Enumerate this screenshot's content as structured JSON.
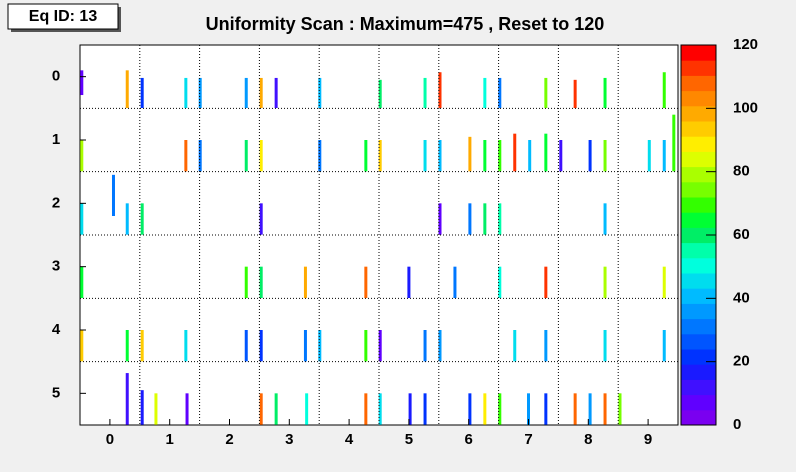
{
  "chart_data": {
    "type": "heatmap",
    "label": "Eq ID: 13",
    "title": "Uniformity Scan : Maximum=475 , Reset to 120",
    "xlim": [
      -0.5,
      9.5
    ],
    "xticks": [
      0,
      1,
      2,
      3,
      4,
      5,
      6,
      7,
      8,
      9
    ],
    "ylim": [
      5.5,
      -0.5
    ],
    "yticks": [
      0,
      1,
      2,
      3,
      4,
      5
    ],
    "xgrid": [
      0.5,
      1.5,
      2.5,
      3.5,
      4.5,
      5.5,
      6.5,
      7.5,
      8.5
    ],
    "ygrid": [
      0.5,
      1.5,
      2.5,
      3.5,
      4.5
    ],
    "zlim": [
      0,
      120
    ],
    "zticks": [
      0,
      20,
      40,
      60,
      80,
      100,
      120
    ],
    "palette": [
      "#7a00f0",
      "#6000ff",
      "#4010ff",
      "#1a1aff",
      "#0033ff",
      "#0055ff",
      "#0077ff",
      "#0099ff",
      "#00bbff",
      "#00ddee",
      "#00ffdd",
      "#00ffaa",
      "#00ee66",
      "#00ff33",
      "#33ff00",
      "#77ff00",
      "#aaff00",
      "#ddff00",
      "#ffee00",
      "#ffcc00",
      "#ffaa00",
      "#ff8800",
      "#ff6600",
      "#ff3300",
      "#ff0000"
    ],
    "cells": [
      [
        -0.47,
        -0.1,
        0.29,
        5
      ],
      [
        0.29,
        -0.1,
        0.495,
        100
      ],
      [
        0.54,
        0.02,
        0.495,
        20
      ],
      [
        1.27,
        0.02,
        0.495,
        45
      ],
      [
        1.51,
        0.02,
        0.495,
        35
      ],
      [
        2.28,
        0.02,
        0.495,
        35
      ],
      [
        2.53,
        0.02,
        0.495,
        100
      ],
      [
        2.78,
        0.02,
        0.495,
        10
      ],
      [
        3.51,
        0.02,
        0.495,
        40
      ],
      [
        4.52,
        0.05,
        0.495,
        60
      ],
      [
        5.27,
        0.02,
        0.495,
        55
      ],
      [
        5.52,
        -0.07,
        0.495,
        115
      ],
      [
        6.27,
        0.02,
        0.495,
        50
      ],
      [
        6.52,
        0.02,
        0.495,
        30
      ],
      [
        7.29,
        0.02,
        0.495,
        75
      ],
      [
        7.78,
        0.05,
        0.495,
        115
      ],
      [
        8.28,
        0.02,
        0.495,
        65
      ],
      [
        9.27,
        -0.07,
        0.495,
        70
      ],
      [
        -0.47,
        1.0,
        1.495,
        80
      ],
      [
        1.27,
        1.0,
        1.495,
        110
      ],
      [
        1.51,
        1.0,
        1.495,
        30
      ],
      [
        2.28,
        1.0,
        1.495,
        60
      ],
      [
        2.53,
        1.0,
        1.495,
        90
      ],
      [
        3.51,
        1.0,
        1.495,
        30
      ],
      [
        4.28,
        1.0,
        1.495,
        65
      ],
      [
        4.52,
        1.0,
        1.495,
        95
      ],
      [
        5.27,
        1.0,
        1.495,
        45
      ],
      [
        5.52,
        1.0,
        1.495,
        40
      ],
      [
        6.02,
        0.95,
        1.495,
        100
      ],
      [
        6.27,
        1.0,
        1.495,
        65
      ],
      [
        6.52,
        1.0,
        1.495,
        70
      ],
      [
        6.77,
        0.9,
        1.495,
        115
      ],
      [
        7.02,
        1.0,
        1.495,
        40
      ],
      [
        7.29,
        0.9,
        1.495,
        65
      ],
      [
        7.54,
        1.0,
        1.495,
        10
      ],
      [
        8.03,
        1.0,
        1.495,
        20
      ],
      [
        8.28,
        1.0,
        1.495,
        75
      ],
      [
        9.02,
        1.0,
        1.495,
        45
      ],
      [
        9.27,
        1.0,
        1.495,
        40
      ],
      [
        9.43,
        0.6,
        1.495,
        70
      ],
      [
        -0.47,
        2.0,
        2.495,
        45
      ],
      [
        0.06,
        1.55,
        2.2,
        30
      ],
      [
        0.29,
        2.0,
        2.495,
        40
      ],
      [
        0.54,
        2.0,
        2.495,
        60
      ],
      [
        2.53,
        2.0,
        2.495,
        10
      ],
      [
        5.52,
        2.0,
        2.495,
        8
      ],
      [
        6.02,
        2.0,
        2.495,
        30
      ],
      [
        6.27,
        2.0,
        2.495,
        60
      ],
      [
        6.52,
        2.0,
        2.495,
        55
      ],
      [
        8.28,
        2.0,
        2.495,
        40
      ],
      [
        -0.47,
        3.0,
        3.495,
        65
      ],
      [
        2.28,
        3.0,
        3.495,
        70
      ],
      [
        2.53,
        3.0,
        3.495,
        60
      ],
      [
        3.27,
        3.0,
        3.495,
        100
      ],
      [
        4.28,
        3.0,
        3.495,
        110
      ],
      [
        5.0,
        3.0,
        3.495,
        15
      ],
      [
        5.77,
        3.0,
        3.495,
        30
      ],
      [
        6.52,
        3.0,
        3.495,
        50
      ],
      [
        7.29,
        3.0,
        3.495,
        115
      ],
      [
        8.28,
        3.0,
        3.495,
        80
      ],
      [
        9.27,
        3.0,
        3.495,
        85
      ],
      [
        -0.47,
        4.0,
        4.495,
        95
      ],
      [
        0.29,
        4.0,
        4.495,
        65
      ],
      [
        0.54,
        4.0,
        4.495,
        95
      ],
      [
        1.27,
        4.0,
        4.495,
        45
      ],
      [
        2.28,
        4.0,
        4.495,
        25
      ],
      [
        2.53,
        4.0,
        4.495,
        20
      ],
      [
        3.27,
        4.0,
        4.495,
        30
      ],
      [
        3.51,
        4.0,
        4.495,
        40
      ],
      [
        4.28,
        4.0,
        4.495,
        70
      ],
      [
        4.52,
        4.0,
        4.495,
        8
      ],
      [
        5.27,
        4.0,
        4.495,
        30
      ],
      [
        5.52,
        4.0,
        4.495,
        35
      ],
      [
        6.77,
        4.0,
        4.495,
        45
      ],
      [
        7.29,
        4.0,
        4.495,
        35
      ],
      [
        8.28,
        4.0,
        4.495,
        45
      ],
      [
        9.27,
        4.0,
        4.495,
        40
      ],
      [
        0.29,
        4.68,
        5.495,
        10
      ],
      [
        0.54,
        4.95,
        5.495,
        15
      ],
      [
        0.77,
        5.0,
        5.495,
        85
      ],
      [
        1.29,
        5.0,
        5.495,
        8
      ],
      [
        2.53,
        5.0,
        5.495,
        110
      ],
      [
        2.78,
        5.0,
        5.495,
        60
      ],
      [
        3.29,
        5.0,
        5.495,
        50
      ],
      [
        4.28,
        5.0,
        5.495,
        110
      ],
      [
        4.52,
        5.0,
        5.495,
        45
      ],
      [
        5.02,
        5.0,
        5.495,
        15
      ],
      [
        5.27,
        5.0,
        5.495,
        20
      ],
      [
        6.02,
        5.0,
        5.495,
        20
      ],
      [
        6.27,
        5.0,
        5.495,
        90
      ],
      [
        6.52,
        5.0,
        5.495,
        70
      ],
      [
        7.0,
        5.0,
        5.495,
        35
      ],
      [
        7.29,
        5.0,
        5.495,
        20
      ],
      [
        7.78,
        5.0,
        5.495,
        110
      ],
      [
        8.03,
        5.0,
        5.495,
        35
      ],
      [
        8.28,
        5.0,
        5.495,
        110
      ],
      [
        8.53,
        5.0,
        5.495,
        75
      ]
    ]
  }
}
